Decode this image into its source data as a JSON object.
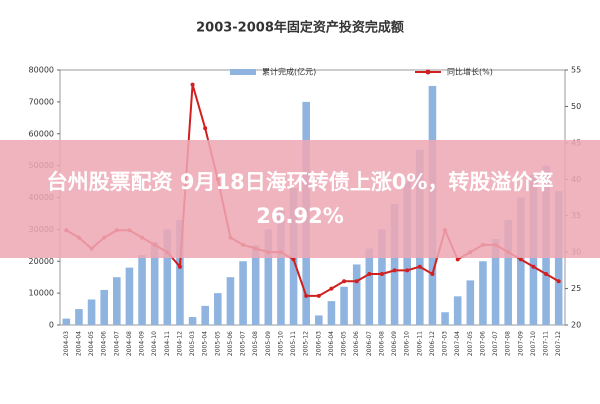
{
  "banner": {
    "text": "台州股票配资 9月18日海环转债上涨0%，转股溢价率26.92%"
  },
  "chart_data": {
    "type": "bar-line",
    "title": "2003-2008年固定资产投资完成额",
    "categories": [
      "2004-03",
      "2004-04",
      "2004-05",
      "2004-06",
      "2004-07",
      "2004-08",
      "2004-09",
      "2004-10",
      "2004-11",
      "2004-12",
      "2005-03",
      "2005-04",
      "2005-05",
      "2005-06",
      "2005-07",
      "2005-08",
      "2005-09",
      "2005-10",
      "2005-11",
      "2005-12",
      "2006-03",
      "2006-04",
      "2006-05",
      "2006-06",
      "2006-07",
      "2006-08",
      "2006-09",
      "2006-10",
      "2006-11",
      "2006-12",
      "2007-03",
      "2007-04",
      "2007-05",
      "2007-06",
      "2007-07",
      "2007-08",
      "2007-09",
      "2007-10",
      "2007-11",
      "2007-12"
    ],
    "series": [
      {
        "name": "累计完成(亿元)",
        "color": "#8fb4e0",
        "values": [
          2000,
          5000,
          8000,
          11000,
          15000,
          18000,
          22000,
          26000,
          30000,
          33000,
          2500,
          6000,
          10000,
          15000,
          20000,
          25000,
          30000,
          36000,
          43000,
          70000,
          3000,
          7500,
          12000,
          19000,
          24000,
          30000,
          38000,
          45000,
          55000,
          75000,
          4000,
          9000,
          14000,
          20000,
          27000,
          33000,
          40000,
          47000,
          50000,
          42000
        ]
      },
      {
        "name": "同比增长(%)",
        "color": "#d02020",
        "axis": "y2",
        "values": [
          33,
          32,
          30.5,
          32,
          33,
          33,
          32,
          31,
          30,
          28,
          53,
          47,
          40,
          32,
          31,
          30.5,
          30,
          30,
          29,
          24,
          24,
          25,
          26,
          26,
          27,
          27,
          27.5,
          27.5,
          28,
          27,
          33,
          29,
          30,
          31,
          31,
          30,
          29,
          28,
          27,
          26
        ]
      }
    ],
    "ylim": [
      0,
      80000
    ],
    "yticks": [
      0,
      10000,
      20000,
      30000,
      40000,
      50000,
      60000,
      70000,
      80000
    ],
    "y2lim": [
      20,
      55
    ],
    "y2ticks": [
      20,
      25,
      30,
      35,
      40,
      45,
      50,
      55
    ]
  }
}
